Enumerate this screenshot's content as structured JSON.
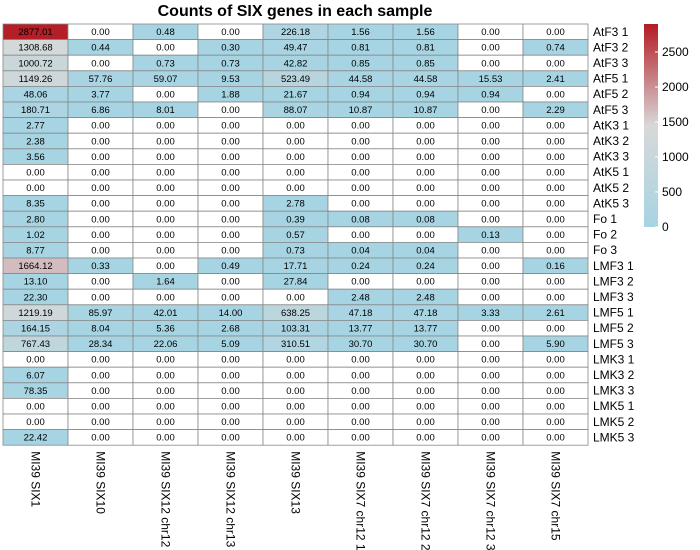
{
  "chart_data": {
    "type": "heatmap",
    "title": "Counts of SIX genes in each sample",
    "rows": [
      "AtF3 1",
      "AtF3 2",
      "AtF3 3",
      "AtF5 1",
      "AtF5 2",
      "AtF5 3",
      "AtK3 1",
      "AtK3 2",
      "AtK3 3",
      "AtK5 1",
      "AtK5 2",
      "AtK5 3",
      "Fo 1",
      "Fo 2",
      "Fo 3",
      "LMF3 1",
      "LMF3 2",
      "LMF3 3",
      "LMF5 1",
      "LMF5 2",
      "LMF5 3",
      "LMK3 1",
      "LMK3 2",
      "LMK3 3",
      "LMK5 1",
      "LMK5 2",
      "LMK5 3"
    ],
    "columns": [
      "MI39 SIX1",
      "MI39 SIX10",
      "MI39 SIX12 chr12",
      "MI39 SIX12 chr13",
      "MI39 SIX13",
      "MI39 SIX7 chr12 1",
      "MI39 SIX7 chr12 2",
      "MI39 SIX7 chr12 3",
      "MI39 SIX7 chr15"
    ],
    "values": [
      [
        2877.01,
        0.0,
        0.48,
        0.0,
        226.18,
        1.56,
        1.56,
        0.0,
        0.0
      ],
      [
        1308.68,
        0.44,
        0.0,
        0.3,
        49.47,
        0.81,
        0.81,
        0.0,
        0.74
      ],
      [
        1000.72,
        0.0,
        0.73,
        0.73,
        42.82,
        0.85,
        0.85,
        0.0,
        0.0
      ],
      [
        1149.26,
        57.76,
        59.07,
        9.53,
        523.49,
        44.58,
        44.58,
        15.53,
        2.41
      ],
      [
        48.06,
        3.77,
        0.0,
        1.88,
        21.67,
        0.94,
        0.94,
        0.94,
        0.0
      ],
      [
        180.71,
        6.86,
        8.01,
        0.0,
        88.07,
        10.87,
        10.87,
        0.0,
        2.29
      ],
      [
        2.77,
        0.0,
        0.0,
        0.0,
        0.0,
        0.0,
        0.0,
        0.0,
        0.0
      ],
      [
        2.38,
        0.0,
        0.0,
        0.0,
        0.0,
        0.0,
        0.0,
        0.0,
        0.0
      ],
      [
        3.56,
        0.0,
        0.0,
        0.0,
        0.0,
        0.0,
        0.0,
        0.0,
        0.0
      ],
      [
        0.0,
        0.0,
        0.0,
        0.0,
        0.0,
        0.0,
        0.0,
        0.0,
        0.0
      ],
      [
        0.0,
        0.0,
        0.0,
        0.0,
        0.0,
        0.0,
        0.0,
        0.0,
        0.0
      ],
      [
        8.35,
        0.0,
        0.0,
        0.0,
        2.78,
        0.0,
        0.0,
        0.0,
        0.0
      ],
      [
        2.8,
        0.0,
        0.0,
        0.0,
        0.39,
        0.08,
        0.08,
        0.0,
        0.0
      ],
      [
        1.02,
        0.0,
        0.0,
        0.0,
        0.57,
        0.0,
        0.0,
        0.13,
        0.0
      ],
      [
        8.77,
        0.0,
        0.0,
        0.0,
        0.73,
        0.04,
        0.04,
        0.0,
        0.0
      ],
      [
        1664.12,
        0.33,
        0.0,
        0.49,
        17.71,
        0.24,
        0.24,
        0.0,
        0.16
      ],
      [
        13.1,
        0.0,
        1.64,
        0.0,
        27.84,
        0.0,
        0.0,
        0.0,
        0.0
      ],
      [
        22.3,
        0.0,
        0.0,
        0.0,
        0.0,
        2.48,
        2.48,
        0.0,
        0.0
      ],
      [
        1219.19,
        85.97,
        42.01,
        14.0,
        638.25,
        47.18,
        47.18,
        3.33,
        2.61
      ],
      [
        164.15,
        8.04,
        5.36,
        2.68,
        103.31,
        13.77,
        13.77,
        0.0,
        0.0
      ],
      [
        767.43,
        28.34,
        22.06,
        5.09,
        310.51,
        30.7,
        30.7,
        0.0,
        5.9
      ],
      [
        0.0,
        0.0,
        0.0,
        0.0,
        0.0,
        0.0,
        0.0,
        0.0,
        0.0
      ],
      [
        6.07,
        0.0,
        0.0,
        0.0,
        0.0,
        0.0,
        0.0,
        0.0,
        0.0
      ],
      [
        78.35,
        0.0,
        0.0,
        0.0,
        0.0,
        0.0,
        0.0,
        0.0,
        0.0
      ],
      [
        0.0,
        0.0,
        0.0,
        0.0,
        0.0,
        0.0,
        0.0,
        0.0,
        0.0
      ],
      [
        0.0,
        0.0,
        0.0,
        0.0,
        0.0,
        0.0,
        0.0,
        0.0,
        0.0
      ],
      [
        22.42,
        0.0,
        0.0,
        0.0,
        0.0,
        0.0,
        0.0,
        0.0,
        0.0
      ]
    ],
    "color_scale": {
      "zero_color": "#ffffff",
      "low_color": "#a6d4e3",
      "mid_color": "#d8d8d8",
      "high_color": "#b31b23",
      "range": [
        0,
        2900
      ]
    },
    "legend": {
      "position": "right",
      "ticks": [
        0,
        500,
        1000,
        1500,
        2000,
        2500
      ]
    },
    "cell_border_color": "#888888"
  }
}
